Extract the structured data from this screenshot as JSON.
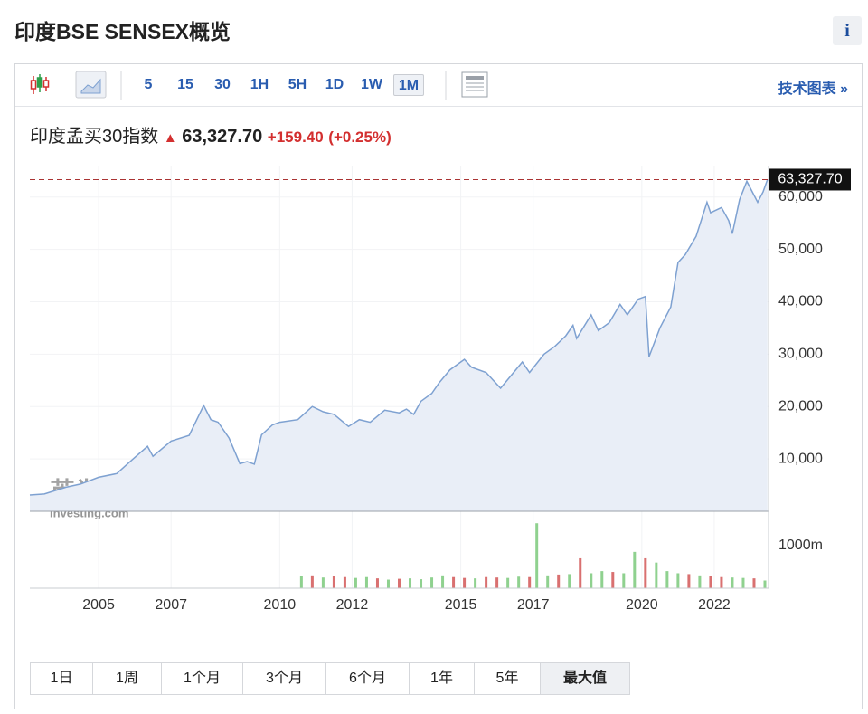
{
  "header": {
    "title": "印度BSE SENSEX概览",
    "info": "i"
  },
  "toolbar": {
    "intervals": [
      "5",
      "15",
      "30",
      "1H",
      "5H",
      "1D",
      "1W",
      "1M"
    ],
    "active": "1M",
    "link": "技术图表 »"
  },
  "quote": {
    "name": "印度孟买30指数",
    "price": "63,327.70",
    "change": "+159.40",
    "change_pct": "(+0.25%)"
  },
  "chart_data": {
    "type": "line",
    "color": "#7ea1d1",
    "fill": "#e9eef7",
    "grid": true,
    "watermark": {
      "logo": "英为财情",
      "brand": "Investing.com"
    },
    "x": [
      2003.1,
      2003.5,
      2004.1,
      2004.5,
      2005.0,
      2005.5,
      2006.0,
      2006.35,
      2006.5,
      2007.0,
      2007.5,
      2007.9,
      2008.1,
      2008.3,
      2008.6,
      2008.9,
      2009.1,
      2009.3,
      2009.5,
      2009.8,
      2010.0,
      2010.5,
      2010.9,
      2011.2,
      2011.5,
      2011.9,
      2012.2,
      2012.5,
      2012.9,
      2013.3,
      2013.5,
      2013.7,
      2013.9,
      2014.2,
      2014.4,
      2014.7,
      2015.1,
      2015.3,
      2015.7,
      2016.1,
      2016.4,
      2016.7,
      2016.9,
      2017.3,
      2017.6,
      2017.9,
      2018.1,
      2018.2,
      2018.6,
      2018.8,
      2019.1,
      2019.4,
      2019.6,
      2019.9,
      2020.1,
      2020.2,
      2020.5,
      2020.8,
      2021.0,
      2021.2,
      2021.5,
      2021.8,
      2021.9,
      2022.2,
      2022.4,
      2022.5,
      2022.7,
      2022.9,
      2023.2,
      2023.35,
      2023.47
    ],
    "values": [
      3100,
      3300,
      4600,
      5200,
      6500,
      7200,
      10300,
      12400,
      10500,
      13400,
      14500,
      20200,
      17500,
      17000,
      14000,
      9100,
      9500,
      9000,
      14600,
      16500,
      17000,
      17500,
      20000,
      19000,
      18500,
      16200,
      17500,
      17000,
      19300,
      18800,
      19500,
      18500,
      21000,
      22500,
      24500,
      27000,
      29000,
      27500,
      26500,
      23500,
      26000,
      28500,
      26500,
      30000,
      31500,
      33500,
      35500,
      33000,
      37500,
      34500,
      36000,
      39500,
      37500,
      40500,
      41000,
      29500,
      35000,
      39000,
      47500,
      49000,
      52500,
      59000,
      57000,
      58000,
      55500,
      53000,
      59500,
      63000,
      59000,
      61000,
      63327.7
    ],
    "xlim": [
      2003.1,
      2023.5
    ],
    "xticks": [
      2005,
      2007,
      2010,
      2012,
      2015,
      2017,
      2020,
      2022
    ],
    "ylim": [
      0,
      66000
    ],
    "yticks": [
      {
        "value": 10000,
        "label": "10,000"
      },
      {
        "value": 20000,
        "label": "20,000"
      },
      {
        "value": 30000,
        "label": "30,000"
      },
      {
        "value": 40000,
        "label": "40,000"
      },
      {
        "value": 50000,
        "label": "50,000"
      },
      {
        "value": 60000,
        "label": "60,000"
      }
    ],
    "volume": {
      "up_color": "#8fd18f",
      "down_color": "#d97070",
      "x": [
        2010.6,
        2010.9,
        2011.2,
        2011.5,
        2011.8,
        2012.1,
        2012.4,
        2012.7,
        2013.0,
        2013.3,
        2013.6,
        2013.9,
        2014.2,
        2014.5,
        2014.8,
        2015.1,
        2015.4,
        2015.7,
        2016.0,
        2016.3,
        2016.6,
        2016.9,
        2017.1,
        2017.4,
        2017.7,
        2018.0,
        2018.3,
        2018.6,
        2018.9,
        2019.2,
        2019.5,
        2019.8,
        2020.1,
        2020.4,
        2020.7,
        2021.0,
        2021.3,
        2021.6,
        2021.9,
        2022.2,
        2022.5,
        2022.8,
        2023.1,
        2023.4
      ],
      "values": [
        280,
        300,
        250,
        280,
        260,
        240,
        260,
        230,
        200,
        220,
        230,
        210,
        250,
        300,
        260,
        240,
        230,
        260,
        250,
        240,
        270,
        260,
        1520,
        300,
        320,
        330,
        700,
        350,
        400,
        380,
        350,
        850,
        700,
        600,
        400,
        350,
        330,
        300,
        280,
        260,
        250,
        240,
        230,
        180
      ],
      "up": [
        true,
        false,
        true,
        false,
        false,
        true,
        true,
        false,
        true,
        false,
        true,
        true,
        true,
        true,
        false,
        false,
        true,
        false,
        false,
        true,
        true,
        false,
        true,
        true,
        false,
        true,
        false,
        true,
        true,
        false,
        true,
        true,
        false,
        true,
        true,
        true,
        false,
        true,
        false,
        false,
        true,
        true,
        false,
        true
      ],
      "ylim": [
        0,
        1800
      ],
      "yticks": [
        {
          "value": 1000,
          "label": "1000m"
        }
      ]
    }
  },
  "ranges": {
    "items": [
      "1日",
      "1周",
      "1个月",
      "3个月",
      "6个月",
      "1年",
      "5年",
      "最大值"
    ],
    "active": "最大值"
  }
}
